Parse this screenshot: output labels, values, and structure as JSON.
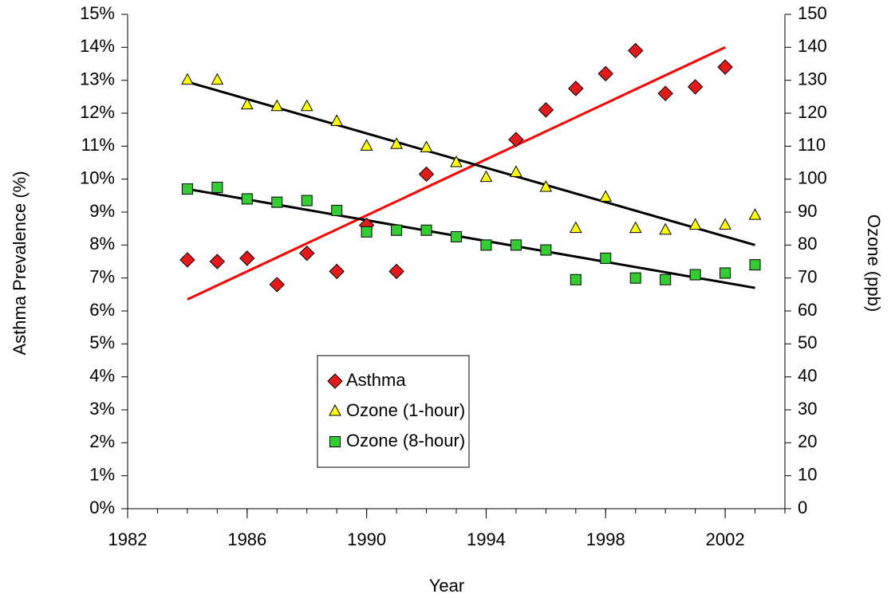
{
  "chart_data": {
    "type": "scatter",
    "xlabel": "Year",
    "ylabel": "Asthma Prevalence (%)",
    "y2label": "Ozone (ppb)",
    "xlim": [
      1982,
      2004
    ],
    "xticks": [
      1982,
      1986,
      1990,
      1994,
      1998,
      2002
    ],
    "ylim": [
      0,
      15
    ],
    "yticks": [
      {
        "value": 0,
        "label": "0%"
      },
      {
        "value": 1,
        "label": "1%"
      },
      {
        "value": 2,
        "label": "2%"
      },
      {
        "value": 3,
        "label": "3%"
      },
      {
        "value": 4,
        "label": "4%"
      },
      {
        "value": 5,
        "label": "5%"
      },
      {
        "value": 6,
        "label": "6%"
      },
      {
        "value": 7,
        "label": "7%"
      },
      {
        "value": 8,
        "label": "8%"
      },
      {
        "value": 9,
        "label": "9%"
      },
      {
        "value": 10,
        "label": "10%"
      },
      {
        "value": 11,
        "label": "11%"
      },
      {
        "value": 12,
        "label": "12%"
      },
      {
        "value": 13,
        "label": "13%"
      },
      {
        "value": 14,
        "label": "14%"
      },
      {
        "value": 15,
        "label": "15%"
      }
    ],
    "y2lim": [
      0,
      150
    ],
    "y2ticks": [
      0,
      10,
      20,
      30,
      40,
      50,
      60,
      70,
      80,
      90,
      100,
      110,
      120,
      130,
      140,
      150
    ],
    "legend": "center",
    "series": [
      {
        "name": "Asthma",
        "color": "#e31a1c",
        "marker": "diamond",
        "axis": "y",
        "x": [
          1984,
          1985,
          1986,
          1987,
          1988,
          1989,
          1990,
          1991,
          1992,
          1995,
          1996,
          1997,
          1998,
          1999,
          2000,
          2001,
          2002
        ],
        "values": [
          7.55,
          7.5,
          7.6,
          6.8,
          7.75,
          7.2,
          8.6,
          7.2,
          10.15,
          11.2,
          12.1,
          12.75,
          13.2,
          13.9,
          12.6,
          12.8,
          13.4
        ]
      },
      {
        "name": "Ozone (1-hour)",
        "color": "#ffff00",
        "marker": "triangle",
        "axis": "y2",
        "x": [
          1984,
          1985,
          1986,
          1987,
          1988,
          1989,
          1990,
          1991,
          1992,
          1993,
          1994,
          1995,
          1996,
          1997,
          1998,
          1999,
          2000,
          2001,
          2002,
          2003
        ],
        "values": [
          130,
          130,
          122.5,
          122,
          122,
          117.5,
          110,
          110.5,
          109.5,
          105,
          100.5,
          102,
          97.5,
          85,
          94.5,
          85,
          84.5,
          86,
          86,
          89
        ]
      },
      {
        "name": "Ozone (8-hour)",
        "color": "#33cc33",
        "marker": "square",
        "axis": "y2",
        "x": [
          1984,
          1985,
          1986,
          1987,
          1988,
          1989,
          1990,
          1991,
          1992,
          1993,
          1994,
          1995,
          1996,
          1997,
          1998,
          1999,
          2000,
          2001,
          2002,
          2003
        ],
        "values": [
          97,
          97.5,
          94,
          93,
          93.5,
          90.5,
          84,
          84.5,
          84.5,
          82.5,
          80,
          80,
          78.5,
          69.5,
          76,
          70,
          69.5,
          71,
          71.5,
          74
        ]
      }
    ],
    "trendlines": [
      {
        "color": "#ff0000",
        "axis": "y",
        "x": [
          1984,
          2002
        ],
        "values": [
          6.35,
          14.0
        ]
      },
      {
        "color": "#000000",
        "axis": "y2",
        "x": [
          1984,
          2003
        ],
        "values": [
          129.5,
          80
        ]
      },
      {
        "color": "#000000",
        "axis": "y2",
        "x": [
          1984,
          2003
        ],
        "values": [
          97,
          67
        ]
      }
    ]
  }
}
